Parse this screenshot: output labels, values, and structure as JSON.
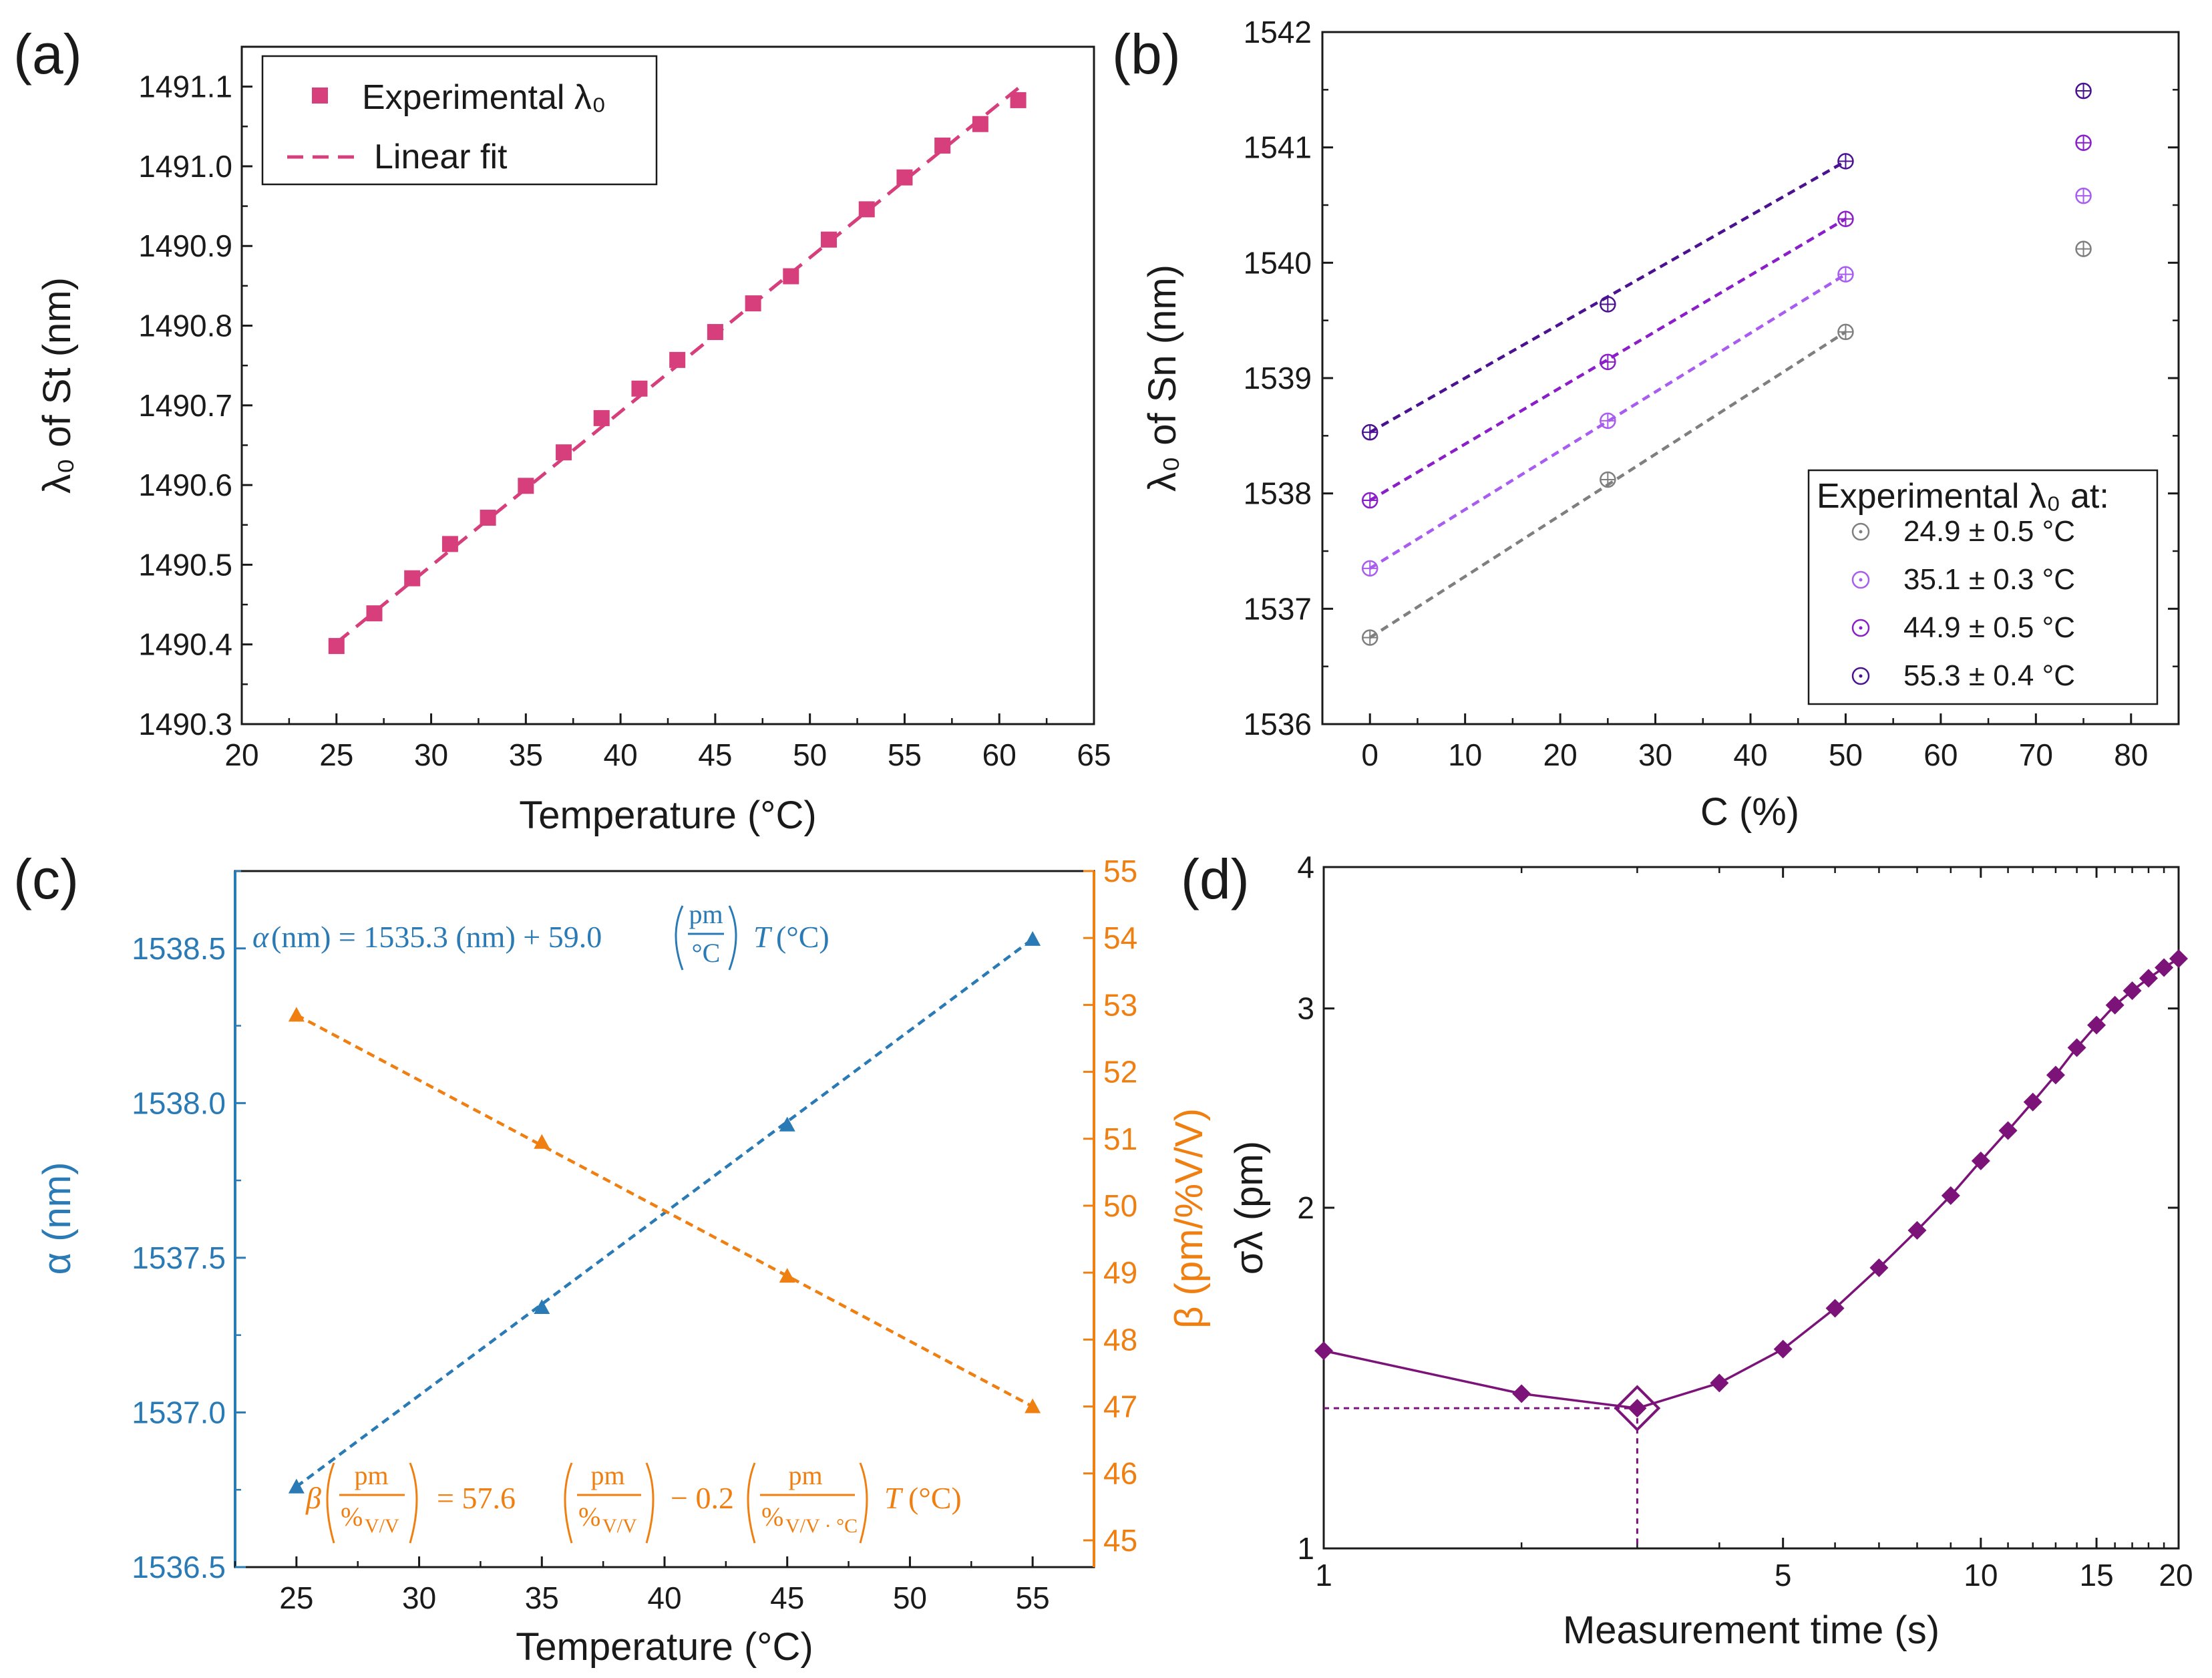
{
  "chart_data": [
    {
      "id": "a",
      "panel_label": "(a)",
      "type": "scatter",
      "xlabel": "Temperature (°C)",
      "ylabel": "λ₀ of St (nm)",
      "xlim": [
        20,
        65
      ],
      "ylim": [
        1490.3,
        1491.15
      ],
      "xticks": [
        "20",
        "25",
        "30",
        "35",
        "40",
        "45",
        "50",
        "55",
        "60",
        "65"
      ],
      "yticks": [
        "1490.3",
        "1490.4",
        "1490.5",
        "1490.6",
        "1490.7",
        "1490.8",
        "1490.9",
        "1491.0",
        "1491.1"
      ],
      "legend": {
        "position": "top-left",
        "experimental": "Experimental λ₀",
        "fit": "Linear fit"
      },
      "color": "#d63f7c",
      "x": [
        25,
        27,
        29,
        31,
        33,
        35,
        37,
        39,
        41,
        43,
        45,
        47,
        49,
        51,
        53,
        55,
        57,
        59,
        61
      ],
      "y": [
        1490.398,
        1490.439,
        1490.483,
        1490.526,
        1490.559,
        1490.599,
        1490.641,
        1490.684,
        1490.721,
        1490.757,
        1490.792,
        1490.828,
        1490.862,
        1490.908,
        1490.946,
        1490.986,
        1491.026,
        1491.053,
        1491.083
      ],
      "fit": {
        "x": [
          25,
          61
        ],
        "y": [
          1490.402,
          1491.098
        ]
      }
    },
    {
      "id": "b",
      "panel_label": "(b)",
      "type": "scatter",
      "xlabel": "C (%)",
      "ylabel": "λ₀ of Sn (nm)",
      "xlim": [
        -5,
        85
      ],
      "ylim": [
        1536,
        1542
      ],
      "xticks": [
        "0",
        "10",
        "20",
        "30",
        "40",
        "50",
        "60",
        "70",
        "80"
      ],
      "yticks": [
        "1536",
        "1537",
        "1538",
        "1539",
        "1540",
        "1541",
        "1542"
      ],
      "legend": {
        "position": "bottom-right",
        "title": "Experimental λ₀ at:"
      },
      "series": [
        {
          "name": "24.9 ± 0.5 °C",
          "color": "#7f7f7f",
          "x": [
            0,
            25,
            50,
            75
          ],
          "y": [
            1536.75,
            1538.12,
            1539.4,
            1540.12
          ],
          "fit": [
            1536.75,
            1539.4
          ]
        },
        {
          "name": "35.1 ± 0.3 °C",
          "color": "#a85cf0",
          "x": [
            0,
            25,
            50,
            75
          ],
          "y": [
            1537.35,
            1538.63,
            1539.9,
            1540.58
          ],
          "fit": [
            1537.35,
            1539.9
          ]
        },
        {
          "name": "44.9 ± 0.5 °C",
          "color": "#8a1fc9",
          "x": [
            0,
            25,
            50,
            75
          ],
          "y": [
            1537.94,
            1539.14,
            1540.38,
            1541.04
          ],
          "fit": [
            1537.94,
            1540.38
          ]
        },
        {
          "name": "55.3 ± 0.4 °C",
          "color": "#4a1290",
          "x": [
            0,
            25,
            50,
            75
          ],
          "y": [
            1538.53,
            1539.64,
            1540.88,
            1541.49
          ],
          "fit": [
            1538.53,
            1540.88
          ]
        }
      ]
    },
    {
      "id": "c",
      "panel_label": "(c)",
      "type": "line",
      "xlabel": "Temperature (°C)",
      "ylabel_left": "α (nm)",
      "ylabel_right": "β (pm/%V/V)",
      "xlim": [
        22.5,
        57.5
      ],
      "ylim_left": [
        1536.5,
        1538.75
      ],
      "ylim_right": [
        44.6,
        55
      ],
      "xticks": [
        "25",
        "30",
        "35",
        "40",
        "45",
        "50",
        "55"
      ],
      "yticks_left": [
        "1536.5",
        "1537.0",
        "1537.5",
        "1538.0",
        "1538.5"
      ],
      "yticks_right": [
        "45",
        "46",
        "47",
        "48",
        "49",
        "50",
        "51",
        "52",
        "53",
        "54",
        "55"
      ],
      "series": [
        {
          "name": "α",
          "axis": "left",
          "color": "#2a7ab5",
          "x": [
            25,
            35,
            45,
            55
          ],
          "y": [
            1536.76,
            1537.34,
            1537.93,
            1538.53
          ]
        },
        {
          "name": "β",
          "axis": "right",
          "color": "#f07f12",
          "x": [
            25,
            35,
            45,
            55
          ],
          "y": [
            52.85,
            50.95,
            48.95,
            47.0
          ]
        }
      ],
      "annotations": {
        "alpha_eq": {
          "alpha": "α",
          "nm1": "(nm) = 1535.3 (nm) + 59.0",
          "pm": "pm",
          "degc": "°C",
          "T": "T",
          "tail": "(°C)"
        },
        "beta_eq": {
          "beta": "β",
          "pm": "pm",
          "pct": "%",
          "vv": "V/V",
          "mid": "= 57.6",
          "minus": "− 0.2",
          "vvdeg": "V/V · °C",
          "T": "T",
          "tail": "(°C)"
        }
      }
    },
    {
      "id": "d",
      "panel_label": "(d)",
      "type": "line",
      "xscale": "log",
      "yscale": "log",
      "xlabel": "Measurement time (s)",
      "ylabel": "σλ (pm)",
      "xlim": [
        1,
        20
      ],
      "ylim": [
        1,
        4
      ],
      "xticks": [
        {
          "v": 1,
          "label": "1"
        },
        {
          "v": 5,
          "label": "5"
        },
        {
          "v": 10,
          "label": "10"
        },
        {
          "v": 15,
          "label": "15"
        },
        {
          "v": 20,
          "label": "20"
        }
      ],
      "yticks": [
        {
          "v": 1,
          "label": "1"
        },
        {
          "v": 2,
          "label": "2"
        },
        {
          "v": 3,
          "label": "3"
        },
        {
          "v": 4,
          "label": "4"
        }
      ],
      "color": "#7b1378",
      "x": [
        1,
        2,
        3,
        4,
        5,
        6,
        7,
        8,
        9,
        10,
        11,
        12,
        13,
        14,
        15,
        16,
        17,
        18,
        19,
        20
      ],
      "y": [
        1.495,
        1.37,
        1.33,
        1.4,
        1.5,
        1.63,
        1.77,
        1.91,
        2.05,
        2.2,
        2.34,
        2.48,
        2.62,
        2.77,
        2.9,
        3.02,
        3.11,
        3.19,
        3.26,
        3.32
      ],
      "highlight": {
        "x": 3,
        "y": 1.33
      }
    }
  ]
}
